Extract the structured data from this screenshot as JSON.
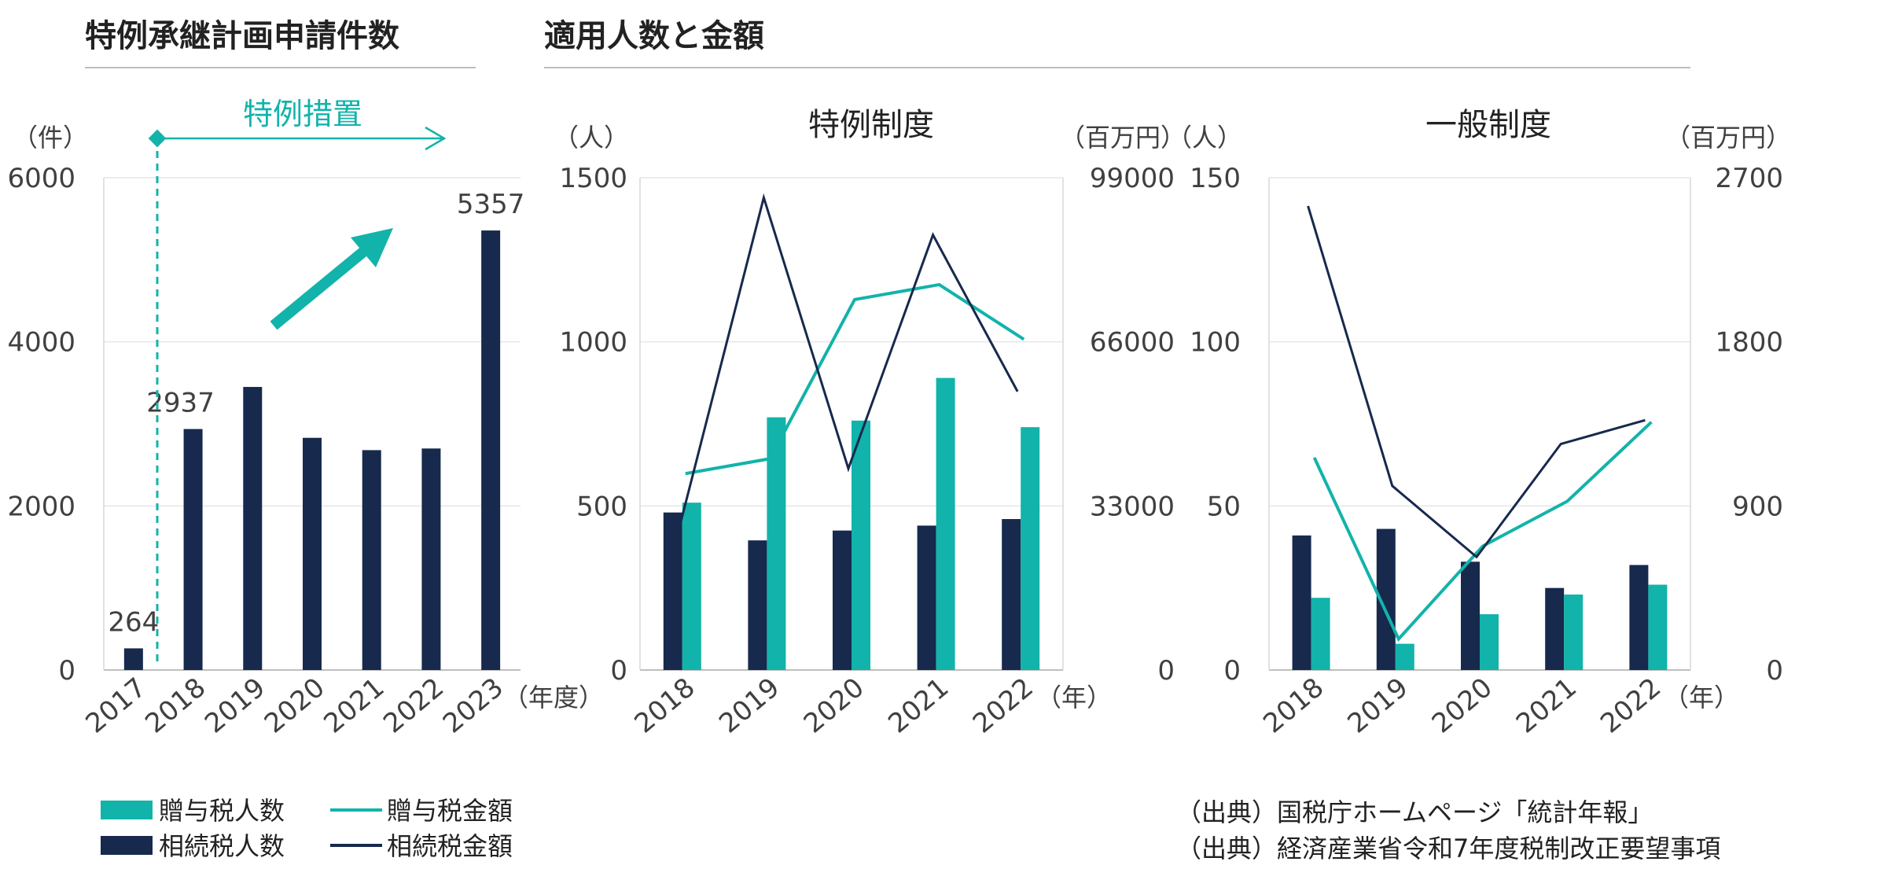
{
  "colors": {
    "teal": "#12b3aa",
    "navy": "#17294d",
    "grid": "#e6e6e6",
    "axis_text": "#404040",
    "rule": "#bdbdbd"
  },
  "section_titles": {
    "left": "特例承継計画申請件数",
    "right": "適用人数と金額"
  },
  "annotation": {
    "measure_label": "特例措置",
    "arrow_icon": "up-right-arrow-icon"
  },
  "legend": {
    "gift_count": "贈与税人数",
    "inherit_count": "相続税人数",
    "gift_amount": "贈与税金額",
    "inherit_amount": "相続税金額"
  },
  "sources": [
    "（出典）国税庁ホームページ「統計年報」",
    "（出典）経済産業省令和7年度税制改正要望事項"
  ],
  "chart_data": [
    {
      "type": "bar",
      "title": "",
      "y_unit": "（件）",
      "x_unit": "（年度）",
      "categories": [
        "2017",
        "2018",
        "2019",
        "2020",
        "2021",
        "2022",
        "2023"
      ],
      "values": [
        264,
        2937,
        3450,
        2830,
        2680,
        2700,
        5357
      ],
      "data_labels": [
        "264",
        "2937",
        "",
        "",
        "",
        "",
        "5357"
      ],
      "ylim": [
        0,
        6000
      ],
      "yticks": [
        "0",
        "2000",
        "4000",
        "6000"
      ],
      "grid": true
    },
    {
      "type": "bar+line",
      "title": "特例制度",
      "y_left_unit": "（人）",
      "y_right_unit": "（百万円）",
      "x_unit": "（年）",
      "categories": [
        "2018",
        "2019",
        "2020",
        "2021",
        "2022"
      ],
      "ylim_left": [
        0,
        1500
      ],
      "yticks_left": [
        "0",
        "500",
        "1000",
        "1500"
      ],
      "ylim_right": [
        0,
        99000
      ],
      "yticks_right": [
        "0",
        "33000",
        "66000",
        "99000"
      ],
      "bar_series": [
        {
          "name": "相続税人数",
          "values": [
            480,
            395,
            425,
            440,
            460
          ]
        },
        {
          "name": "贈与税人数",
          "values": [
            510,
            770,
            760,
            890,
            740
          ]
        }
      ],
      "line_series": [
        {
          "name": "贈与税金額",
          "values": [
            39500,
            42500,
            74500,
            77500,
            66500
          ]
        },
        {
          "name": "相続税金額",
          "values": [
            28500,
            95000,
            40500,
            87500,
            56000
          ]
        }
      ],
      "grid": true
    },
    {
      "type": "bar+line",
      "title": "一般制度",
      "y_left_unit": "（人）",
      "y_right_unit": "（百万円）",
      "x_unit": "（年）",
      "categories": [
        "2018",
        "2019",
        "2020",
        "2021",
        "2022"
      ],
      "ylim_left": [
        0,
        150
      ],
      "yticks_left": [
        "0",
        "50",
        "100",
        "150"
      ],
      "ylim_right": [
        0,
        2700
      ],
      "yticks_right": [
        "0",
        "900",
        "1800",
        "2700"
      ],
      "bar_series": [
        {
          "name": "相続税人数",
          "values": [
            41,
            43,
            33,
            25,
            32
          ]
        },
        {
          "name": "贈与税人数",
          "values": [
            22,
            8,
            17,
            23,
            26
          ]
        }
      ],
      "line_series": [
        {
          "name": "贈与税金額",
          "values": [
            1165,
            170,
            680,
            925,
            1360
          ]
        },
        {
          "name": "相続税金額",
          "values": [
            2545,
            1010,
            620,
            1240,
            1370
          ]
        }
      ],
      "grid": true
    }
  ]
}
